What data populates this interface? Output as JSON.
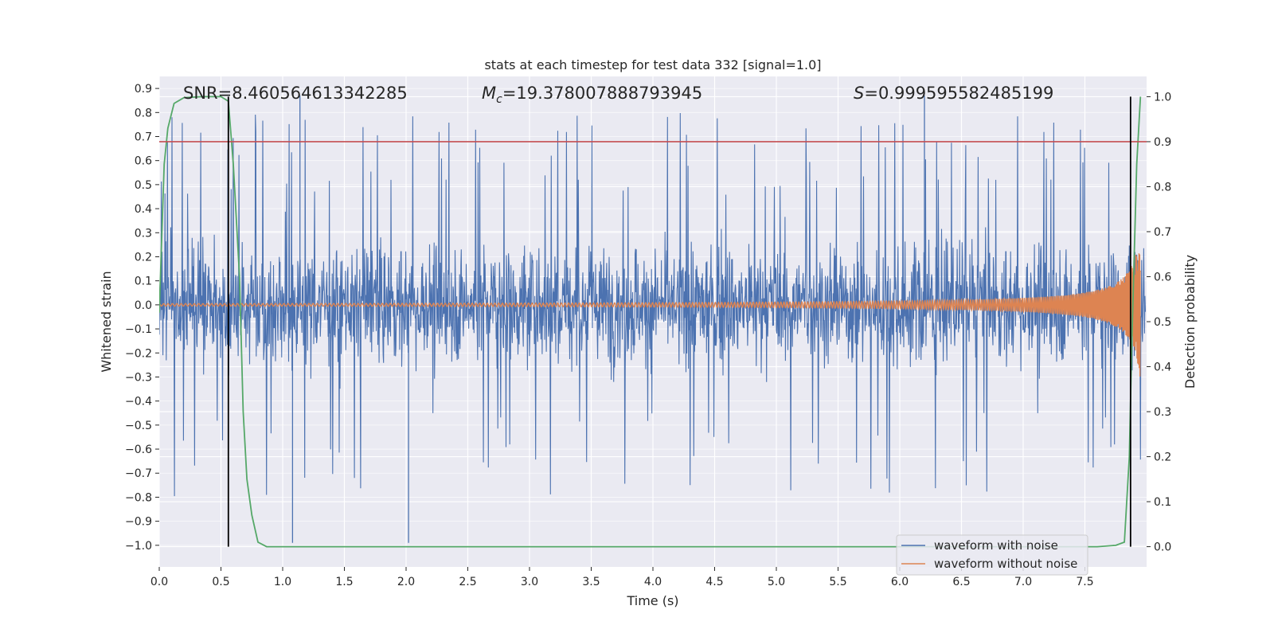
{
  "chart_data": {
    "type": "line",
    "title": "stats at each timestep for test data 332 [signal=1.0]",
    "xlabel": "Time (s)",
    "ylabel_left": "Whitened strain",
    "ylabel_right": "Detection probability",
    "xlim": [
      0.0,
      8.0
    ],
    "ylim_left": [
      -1.09,
      0.95
    ],
    "ylim_right": [
      -0.045,
      1.045
    ],
    "x_ticks": [
      "0.0",
      "0.5",
      "1.0",
      "1.5",
      "2.0",
      "2.5",
      "3.0",
      "3.5",
      "4.0",
      "4.5",
      "5.0",
      "5.5",
      "6.0",
      "6.5",
      "7.0",
      "7.5"
    ],
    "y_ticks_left": [
      "0.9",
      "0.8",
      "0.7",
      "0.6",
      "0.5",
      "0.4",
      "0.3",
      "0.2",
      "0.1",
      "0.0",
      "−0.1",
      "−0.2",
      "−0.3",
      "−0.4",
      "−0.5",
      "−0.6",
      "−0.7",
      "−0.8",
      "−0.9",
      "−1.0"
    ],
    "y_ticks_right": [
      "1.0",
      "0.9",
      "0.8",
      "0.7",
      "0.6",
      "0.5",
      "0.4",
      "0.3",
      "0.2",
      "0.1",
      "0.0"
    ],
    "grid": true,
    "legend_position": "bottom-right",
    "annotations": {
      "snr": "SNR=8.460564613342285",
      "mc_symbol": "M",
      "mc_sub": "c",
      "mc_value": "=19.378007888793945",
      "s_symbol": "S",
      "s_value": "=0.999595582485199"
    },
    "series": [
      {
        "name": "waveform with noise",
        "color": "#4c72b0",
        "axis": "left",
        "description_values": {
          "typical_envelope": [
            -0.55,
            0.6
          ],
          "max_peak": 0.87,
          "min_peak": -0.99
        }
      },
      {
        "name": "waveform without noise",
        "color": "#dd8452",
        "axis": "left",
        "description_values": {
          "start_amplitude": 0.005,
          "end_amplitude": 0.44,
          "merger_time": 7.95
        }
      },
      {
        "color": "#55a868",
        "axis": "right",
        "x": [
          0.0,
          0.04,
          0.07,
          0.12,
          0.2,
          0.35,
          0.5,
          0.56,
          0.6,
          0.65,
          0.68,
          0.71,
          0.75,
          0.8,
          0.87,
          0.9,
          1.2,
          2.0,
          3.0,
          4.0,
          5.0,
          6.0,
          7.0,
          7.6,
          7.75,
          7.82,
          7.86,
          7.88,
          7.92,
          7.95
        ],
        "values": [
          0.52,
          0.85,
          0.93,
          0.985,
          0.998,
          1.0,
          1.0,
          0.99,
          0.85,
          0.6,
          0.3,
          0.15,
          0.07,
          0.01,
          0.0,
          0.0,
          0.0,
          0.0,
          0.0,
          0.0,
          0.0,
          0.0,
          0.0,
          0.0,
          0.003,
          0.01,
          0.2,
          0.45,
          0.85,
          1.0
        ]
      },
      {
        "color": "#c44e52",
        "axis": "right",
        "type": "hline",
        "value": 0.9
      }
    ],
    "vlines": [
      {
        "x": 0.56,
        "ymin_right": 0.0,
        "ymax_right": 1.0,
        "color": "#000000"
      },
      {
        "x": 7.87,
        "ymin_right": 0.0,
        "ymax_right": 1.0,
        "color": "#000000"
      }
    ]
  }
}
